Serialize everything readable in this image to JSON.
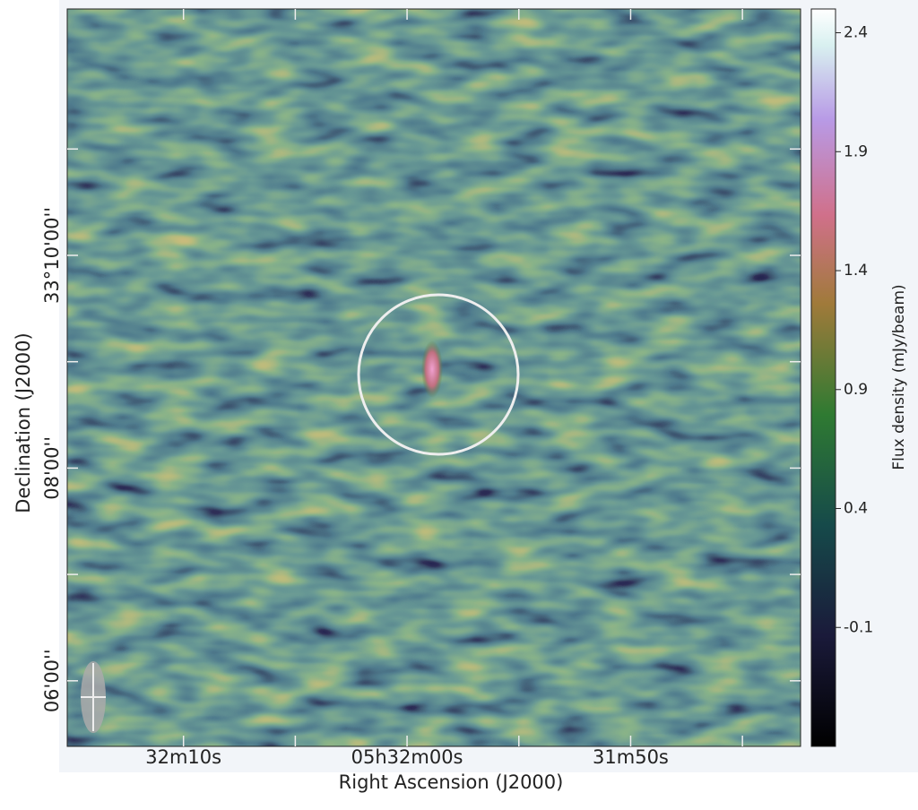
{
  "chart_data": {
    "type": "image",
    "xlabel": "Right Ascension (J2000)",
    "ylabel": "Declination (J2000)",
    "xlim": [
      19935.2,
      19902.4
    ],
    "xticks": [
      {
        "value": 19930,
        "label": "32m10s"
      },
      {
        "value": 19920,
        "label": "05h32m00s"
      },
      {
        "value": 19910,
        "label": "31m50s"
      }
    ],
    "xminorticks": [
      19925,
      19915,
      19905
    ],
    "ylim": [
      119123,
      119539
    ],
    "yticks": [
      {
        "value": 119400,
        "label": "33°10'00''"
      },
      {
        "value": 119280,
        "label": "08'00''"
      },
      {
        "value": 119160,
        "label": "06'00''"
      }
    ],
    "yminorticks": [
      119460,
      119340,
      119220
    ],
    "colorbar": {
      "label": "Flux density (mJy/beam)",
      "clim": [
        -0.6,
        2.5
      ],
      "ticks": [
        2.4,
        1.9,
        1.4,
        0.9,
        0.4,
        -0.1
      ]
    }
  }
}
